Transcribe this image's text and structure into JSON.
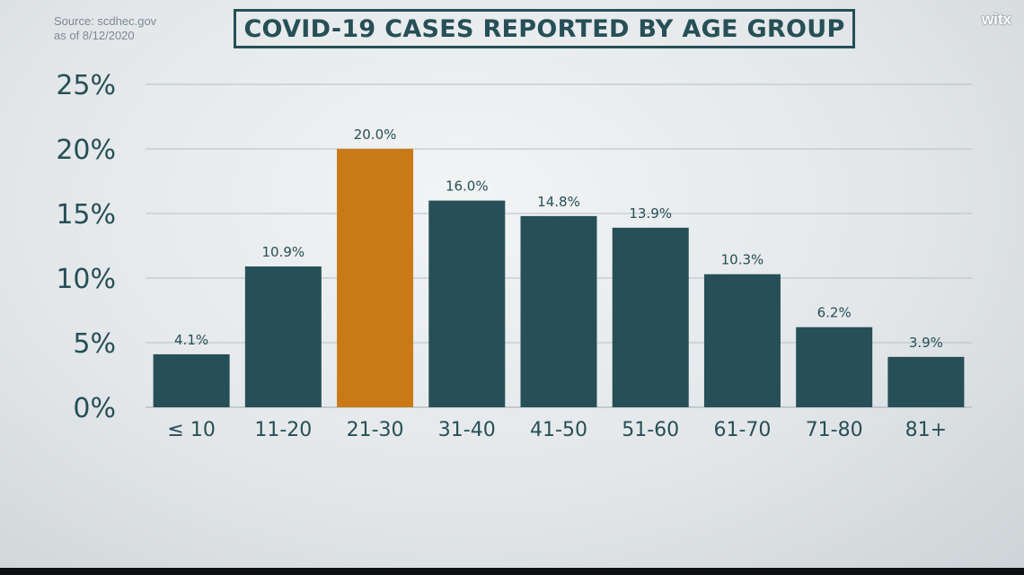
{
  "source": {
    "line1": "Source: scdhec.gov",
    "line2": "as of 8/12/2020"
  },
  "logo": {
    "text": "witx"
  },
  "colors": {
    "bar": "#274f57",
    "highlight": "#c97a17",
    "grid": "#b4c0c5",
    "text": "#274f57"
  },
  "chart_data": {
    "type": "bar",
    "title": "COVID-19 CASES REPORTED BY AGE GROUP",
    "xlabel": "",
    "ylabel": "",
    "categories": [
      "≤ 10",
      "11-20",
      "21-30",
      "31-40",
      "41-50",
      "51-60",
      "61-70",
      "71-80",
      "81+"
    ],
    "values": [
      4.1,
      10.9,
      20.0,
      16.0,
      14.8,
      13.9,
      10.3,
      6.2,
      3.9
    ],
    "data_labels": [
      "4.1%",
      "10.9%",
      "20.0%",
      "16.0%",
      "14.8%",
      "13.9%",
      "10.3%",
      "6.2%",
      "3.9%"
    ],
    "highlight_index": 2,
    "ylim": [
      0,
      25
    ],
    "yticks": [
      0,
      5,
      10,
      15,
      20,
      25
    ],
    "ytick_labels": [
      "0%",
      "5%",
      "10%",
      "15%",
      "20%",
      "25%"
    ],
    "grid": true,
    "legend": "none"
  }
}
